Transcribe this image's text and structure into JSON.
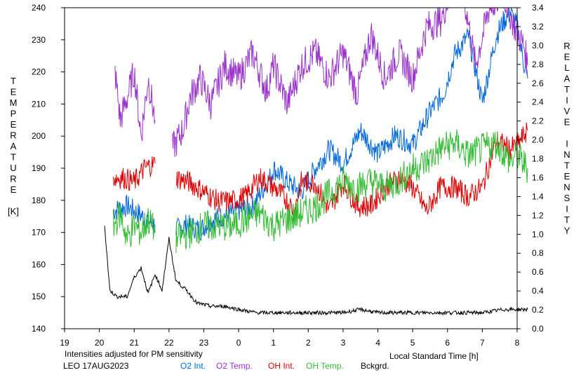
{
  "chart_data": {
    "type": "line",
    "title": "",
    "xlabel": "Local Standard Time [h]",
    "ylabel_left": "TEMPERATURE [K]",
    "ylabel_right": "RELATIVE INTENSITY",
    "ylabel_left_letters": [
      "T",
      "E",
      "M",
      "P",
      "E",
      "R",
      "A",
      "T",
      "U",
      "R",
      "E",
      "",
      "[K]"
    ],
    "ylabel_right_letters": [
      "R",
      "E",
      "L",
      "A",
      "T",
      "I",
      "V",
      "E",
      "",
      "I",
      "N",
      "T",
      "E",
      "N",
      "S",
      "I",
      "T",
      "Y"
    ],
    "note": "Intensities adjusted for PM sensitivity",
    "station": "LEO 17AUG2023",
    "x_range_hours": [
      19,
      32
    ],
    "x_tick_labels": [
      "19",
      "20",
      "21",
      "22",
      "23",
      "0",
      "1",
      "2",
      "3",
      "4",
      "5",
      "6",
      "7",
      "8"
    ],
    "y_left_range": [
      140,
      240
    ],
    "y_left_ticks": [
      140,
      150,
      160,
      170,
      180,
      190,
      200,
      210,
      220,
      230,
      240
    ],
    "y_right_range": [
      0,
      3.4
    ],
    "y_right_tick_labels": [
      "0.0",
      "0.2",
      "0.4",
      "0.6",
      "0.8",
      "1.0",
      "1.2",
      "1.4",
      "1.6",
      "1.8",
      "2.0",
      "2.2",
      "2.4",
      "2.6",
      "2.8",
      "3.0",
      "3.2",
      "3.4"
    ],
    "grid": false,
    "legend_position": "bottom",
    "series": [
      {
        "name": "O2 Int.",
        "axis": "right",
        "color": "#0066dd",
        "segments": [
          {
            "x": [
              20.4,
              20.8,
              21.2,
              21.6
            ],
            "y": [
              1.25,
              1.3,
              1.2,
              1.1
            ]
          },
          {
            "x": [
              22.2,
              22.5,
              22.9,
              23.2,
              23.6,
              24.0,
              24.4,
              24.9,
              25.0,
              25.4,
              25.8,
              26.2,
              26.6,
              27.0,
              27.5,
              28.0,
              28.5,
              29.0,
              29.5,
              29.9,
              30.2,
              30.6,
              31.0,
              31.4,
              31.6,
              31.8,
              32.0,
              32.2,
              32.3
            ],
            "y": [
              1.05,
              1.1,
              1.05,
              1.15,
              1.2,
              1.25,
              1.3,
              1.6,
              1.7,
              1.55,
              1.45,
              1.7,
              1.9,
              1.75,
              2.1,
              1.85,
              2.05,
              1.95,
              2.3,
              2.5,
              2.9,
              3.1,
              2.4,
              3.1,
              3.25,
              3.35,
              3.2,
              2.8,
              2.65
            ]
          }
        ]
      },
      {
        "name": "O2 Temp.",
        "axis": "left",
        "color": "#9933cc",
        "segments": [
          {
            "x": [
              20.45,
              20.6,
              20.8,
              21.0,
              21.2,
              21.4,
              21.6
            ],
            "y": [
              220,
              205,
              212,
              220,
              200,
              218,
              205
            ]
          },
          {
            "x": [
              22.1,
              22.4,
              22.6,
              22.9,
              23.2,
              23.6,
              24.0,
              24.4,
              24.8,
              25.0,
              25.4,
              25.8,
              26.2,
              26.6,
              27.0,
              27.4,
              27.8,
              28.2,
              28.6,
              29.0,
              29.4,
              29.8,
              30.0,
              30.4,
              30.8,
              31.2,
              31.6,
              31.8,
              32.0,
              32.2,
              32.3
            ],
            "y": [
              196,
              202,
              212,
              218,
              210,
              222,
              218,
              226,
              214,
              222,
              210,
              222,
              226,
              218,
              226,
              213,
              232,
              218,
              226,
              218,
              234,
              236,
              242,
              248,
              222,
              240,
              244,
              238,
              232,
              228,
              222
            ]
          }
        ]
      },
      {
        "name": "OH Int.",
        "axis": "right",
        "color": "#dd0000",
        "segments": [
          {
            "x": [
              20.4,
              20.7,
              21.0,
              21.3,
              21.6
            ],
            "y": [
              1.6,
              1.6,
              1.55,
              1.7,
              1.75
            ]
          },
          {
            "x": [
              22.2,
              22.6,
              23.0,
              23.4,
              23.8,
              24.2,
              24.6,
              25.0,
              25.3,
              25.6,
              25.8,
              26.2,
              26.6,
              27.0,
              27.4,
              27.8,
              28.2,
              28.6,
              29.0,
              29.4,
              29.8,
              30.2,
              30.6,
              31.0,
              31.4,
              31.8,
              32.0,
              32.3
            ],
            "y": [
              1.6,
              1.55,
              1.45,
              1.35,
              1.35,
              1.4,
              1.6,
              1.5,
              1.4,
              1.25,
              1.55,
              1.55,
              1.25,
              1.55,
              1.3,
              1.3,
              1.5,
              1.6,
              1.5,
              1.25,
              1.5,
              1.5,
              1.4,
              1.5,
              2.0,
              1.9,
              1.95,
              2.1
            ]
          }
        ]
      },
      {
        "name": "OH Temp.",
        "axis": "left",
        "color": "#33bb33",
        "segments": [
          {
            "x": [
              20.4,
              20.6,
              20.8,
              21.0,
              21.2,
              21.4,
              21.6
            ],
            "y": [
              172,
              176,
              168,
              172,
              170,
              174,
              170
            ]
          },
          {
            "x": [
              22.2,
              22.6,
              23.0,
              23.4,
              23.8,
              24.2,
              24.6,
              25.0,
              25.4,
              25.8,
              26.2,
              26.6,
              27.0,
              27.4,
              27.8,
              28.2,
              28.6,
              29.0,
              29.4,
              29.8,
              30.2,
              30.6,
              31.0,
              31.4,
              31.8,
              32.0,
              32.3
            ],
            "y": [
              168,
              170,
              172,
              172,
              172,
              174,
              176,
              172,
              174,
              176,
              178,
              182,
              186,
              184,
              186,
              184,
              186,
              190,
              192,
              196,
              198,
              194,
              196,
              198,
              192,
              194,
              190
            ]
          }
        ]
      },
      {
        "name": "Bckgrd.",
        "axis": "left",
        "color": "#000000",
        "segments": [
          {
            "x": [
              20.15,
              20.3,
              20.5,
              20.8,
              21.0,
              21.2,
              21.4,
              21.6,
              21.8,
              22.0,
              22.2,
              22.5,
              22.8,
              23.2,
              23.6,
              24.0,
              24.5,
              25.0,
              26.0,
              27.0,
              27.5,
              28.0,
              29.0,
              30.0,
              31.0,
              31.6,
              32.0,
              32.3
            ],
            "y": [
              172,
              152,
              150,
              150,
              156,
              159,
              151,
              157,
              152,
              168,
              155,
              152,
              148,
              147,
              147,
              146,
              145,
              145,
              145,
              145,
              146,
              145,
              145,
              145,
              145,
              146,
              146,
              146
            ]
          }
        ]
      }
    ]
  },
  "legend": [
    {
      "label": "O2 Int.",
      "color": "#0066dd"
    },
    {
      "label": "O2 Temp.",
      "color": "#9933cc"
    },
    {
      "label": "OH Int.",
      "color": "#dd0000"
    },
    {
      "label": "OH Temp.",
      "color": "#33bb33"
    },
    {
      "label": "Bckgrd.",
      "color": "#000000"
    }
  ],
  "colors": {
    "note": "#33bb33",
    "axis": "#000000"
  }
}
